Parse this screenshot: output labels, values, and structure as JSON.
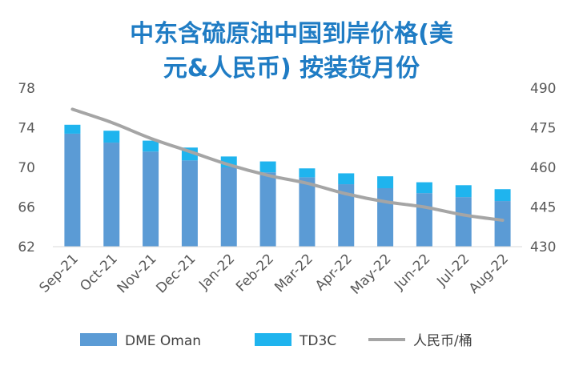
{
  "chart_data": {
    "type": "bar",
    "title_lines": [
      "中东含硫原油中国到岸价格(美",
      "元&人民币) 按装货月份"
    ],
    "categories": [
      "Sep-21",
      "Oct-21",
      "Nov-21",
      "Dec-21",
      "Jan-22",
      "Feb-22",
      "Mar-22",
      "Apr-22",
      "May-22",
      "Jun-22",
      "Jul-22",
      "Aug-22"
    ],
    "series": [
      {
        "name": "DME Oman",
        "kind": "stacked-bar",
        "axis": "left",
        "color": "#5B9BD5",
        "values": [
          73.4,
          72.5,
          71.6,
          70.7,
          70.0,
          69.5,
          69.0,
          68.3,
          67.9,
          67.4,
          67.0,
          66.6
        ]
      },
      {
        "name": "TD3C",
        "kind": "stacked-bar",
        "axis": "left",
        "color": "#1FB4EE",
        "values": [
          0.9,
          1.2,
          1.1,
          1.3,
          1.1,
          1.1,
          0.9,
          1.1,
          1.2,
          1.1,
          1.2,
          1.2
        ]
      },
      {
        "name": "人民币/桶",
        "kind": "line",
        "axis": "right",
        "color": "#A5A5A5",
        "values": [
          482,
          477,
          471,
          466,
          461,
          457,
          454,
          450,
          447,
          445,
          442,
          440
        ]
      }
    ],
    "y_left": {
      "min": 62,
      "max": 78,
      "ticks": [
        62,
        66,
        70,
        74,
        78
      ]
    },
    "y_right": {
      "min": 430,
      "max": 490,
      "ticks": [
        430,
        445,
        460,
        475,
        490
      ]
    },
    "grid": false,
    "legend_position": "bottom",
    "title_color": "#1F7CC4"
  }
}
